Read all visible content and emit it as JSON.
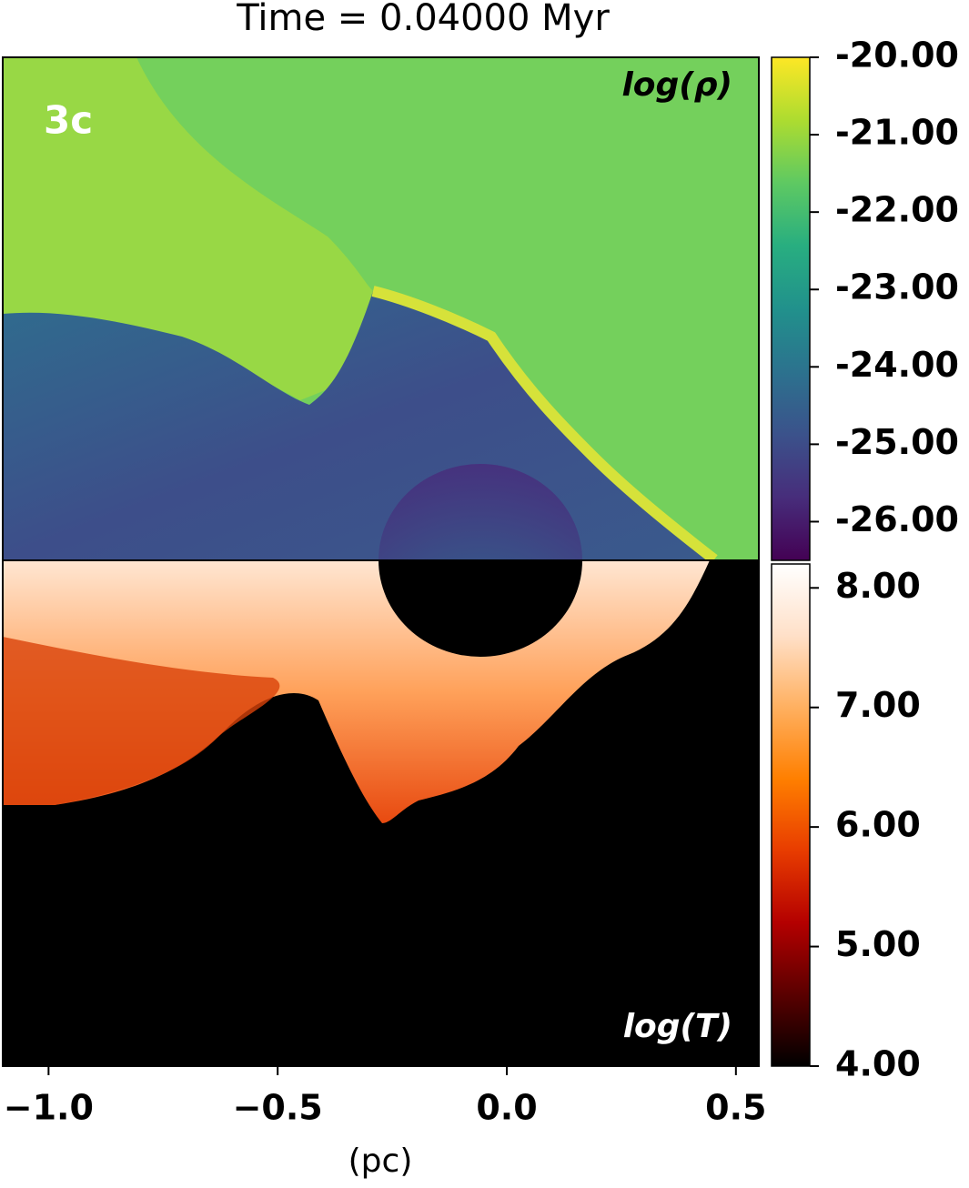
{
  "chart_data": {
    "type": "image",
    "title": "Time = 0.04000 Myr",
    "xlabel": "(pc)",
    "panel_label": "3c",
    "xlim": [
      -1.1,
      0.55
    ],
    "xticks": [
      {
        "value": -1.0,
        "label": "−1.0"
      },
      {
        "value": -0.5,
        "label": "−0.5"
      },
      {
        "value": 0.0,
        "label": "0.0"
      },
      {
        "value": 0.5,
        "label": "0.5"
      }
    ],
    "colorbars": [
      {
        "name": "log(ρ)",
        "lim": [
          -26.5,
          -20.0
        ],
        "ticks": [
          {
            "value": -20,
            "label": "-20.00"
          },
          {
            "value": -21,
            "label": "-21.00"
          },
          {
            "value": -22,
            "label": "-22.00"
          },
          {
            "value": -23,
            "label": "-23.00"
          },
          {
            "value": -24,
            "label": "-24.00"
          },
          {
            "value": -25,
            "label": "-25.00"
          },
          {
            "value": -26,
            "label": "-26.00"
          }
        ],
        "colors": [
          "#440154",
          "#472d7b",
          "#3b528b",
          "#2c728e",
          "#21918c",
          "#28ae80",
          "#5ec962",
          "#addc30",
          "#fde725"
        ]
      },
      {
        "name": "log(T)",
        "lim": [
          4.0,
          8.2
        ],
        "ticks": [
          {
            "value": 8,
            "label": "8.00"
          },
          {
            "value": 7,
            "label": "7.00"
          },
          {
            "value": 6,
            "label": "6.00"
          },
          {
            "value": 5,
            "label": "5.00"
          },
          {
            "value": 4,
            "label": "4.00"
          }
        ],
        "colors": [
          "#000000",
          "#5a0000",
          "#b40000",
          "#e83c00",
          "#ff7f00",
          "#ffb060",
          "#ffe0c8",
          "#ffffff"
        ]
      }
    ]
  }
}
